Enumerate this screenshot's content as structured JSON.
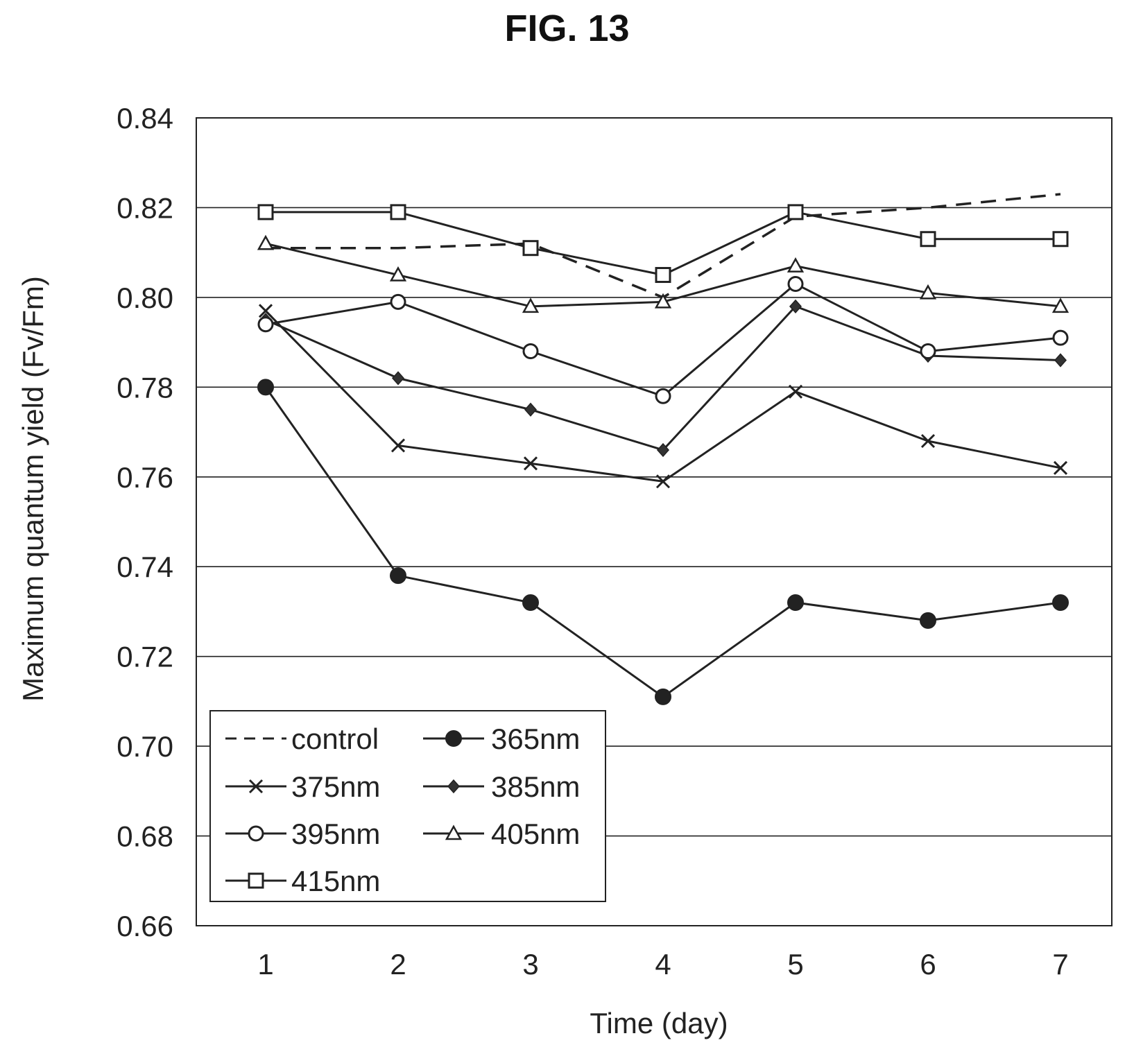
{
  "figure_label": "FIG. 13",
  "chart_data": {
    "type": "line",
    "title": "",
    "xlabel": "Time (day)",
    "ylabel": "Maximum quantum yield (Fv/Fm)",
    "x": [
      1,
      2,
      3,
      4,
      5,
      6,
      7
    ],
    "x_tick_labels": [
      "1",
      "2",
      "3",
      "4",
      "5",
      "6",
      "7"
    ],
    "ylim": [
      0.66,
      0.84
    ],
    "y_ticks": [
      0.66,
      0.68,
      0.7,
      0.72,
      0.74,
      0.76,
      0.78,
      0.8,
      0.82,
      0.84
    ],
    "y_tick_labels": [
      "0.66",
      "0.68",
      "0.70",
      "0.72",
      "0.74",
      "0.76",
      "0.78",
      "0.80",
      "0.82",
      "0.84"
    ],
    "grid": "horizontal",
    "legend_position": "bottom-left",
    "series": [
      {
        "name": "control",
        "marker": "none",
        "dash": "dashed",
        "values": [
          0.811,
          0.811,
          0.812,
          0.8,
          0.818,
          0.82,
          0.823
        ]
      },
      {
        "name": "365nm",
        "marker": "filled-circle",
        "dash": "solid",
        "values": [
          0.78,
          0.738,
          0.732,
          0.711,
          0.732,
          0.728,
          0.732
        ]
      },
      {
        "name": "375nm",
        "marker": "x",
        "dash": "solid",
        "values": [
          0.797,
          0.767,
          0.763,
          0.759,
          0.779,
          0.768,
          0.762
        ]
      },
      {
        "name": "385nm",
        "marker": "diamond",
        "dash": "solid",
        "values": [
          0.795,
          0.782,
          0.775,
          0.766,
          0.798,
          0.787,
          0.786
        ]
      },
      {
        "name": "395nm",
        "marker": "open-circle",
        "dash": "solid",
        "values": [
          0.794,
          0.799,
          0.788,
          0.778,
          0.803,
          0.788,
          0.791
        ]
      },
      {
        "name": "405nm",
        "marker": "triangle",
        "dash": "solid",
        "values": [
          0.812,
          0.805,
          0.798,
          0.799,
          0.807,
          0.801,
          0.798
        ]
      },
      {
        "name": "415nm",
        "marker": "open-square",
        "dash": "solid",
        "values": [
          0.819,
          0.819,
          0.811,
          0.805,
          0.819,
          0.813,
          0.813
        ]
      }
    ]
  }
}
